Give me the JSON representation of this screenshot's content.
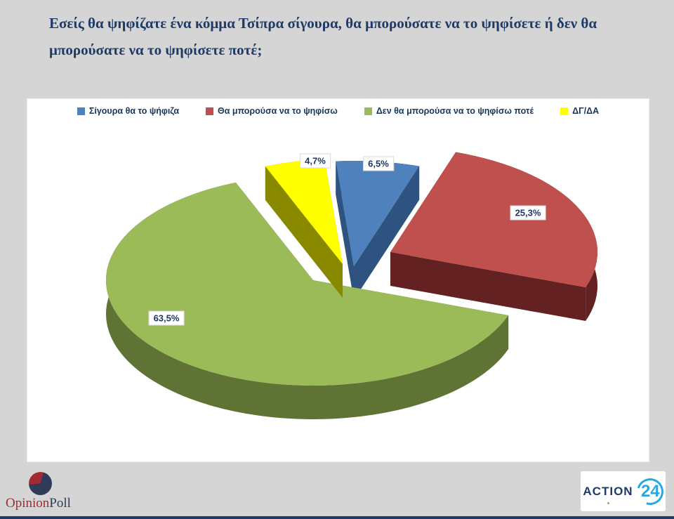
{
  "title": "Εσείς θα ψηφίζατε ένα κόμμα Τσίπρα σίγουρα, θα μπορούσατε να το ψηφίσετε ή δεν θα μπορούσατε να το ψηφίσετε ποτέ;",
  "chart_data": {
    "type": "pie",
    "style": "3d-exploded",
    "unit": "%",
    "legend_position": "top",
    "label_text_color": "#1f3864",
    "slices": [
      {
        "label": "Σίγουρα θα το ψήφιζα",
        "value": 6.5,
        "display": "6,5%",
        "color": "#4f81bd",
        "side_color": "#2e5380"
      },
      {
        "label": "Θα μπορούσα να το ψηφίσω",
        "value": 25.3,
        "display": "25,3%",
        "color": "#c0504d",
        "side_color": "#632221"
      },
      {
        "label": "Δεν θα μπορούσα να το ψηφίσω ποτέ",
        "value": 63.5,
        "display": "63,5%",
        "color": "#9bbb59",
        "side_color": "#5f7434"
      },
      {
        "label": "ΔΓ/ΔΑ",
        "value": 4.7,
        "display": "4,7%",
        "color": "#ffff00",
        "side_color": "#898900"
      }
    ]
  },
  "footer": {
    "opinion_poll": {
      "part1": "Opinion",
      "part2": "Poll"
    },
    "action24": {
      "part1": "ACTION",
      "part2": "24"
    }
  }
}
